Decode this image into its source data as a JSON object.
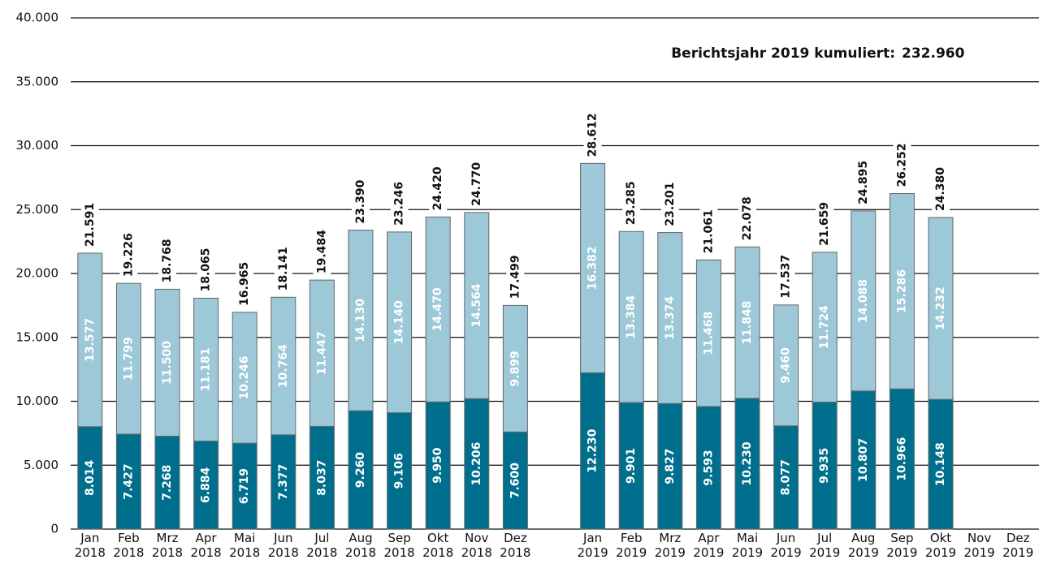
{
  "chart_data": {
    "type": "stacked-bar",
    "annotation": {
      "text": "Berichtsjahr 2019 kumuliert:",
      "value": 232960,
      "value_label": "232.960"
    },
    "categories": [
      "Jan 2018",
      "Feb 2018",
      "Mrz 2018",
      "Apr 2018",
      "Mai 2018",
      "Jun 2018",
      "Jul 2018",
      "Aug 2018",
      "Sep 2018",
      "Okt 2018",
      "Nov 2018",
      "Dez 2018",
      null,
      "Jan 2019",
      "Feb 2019",
      "Mrz 2019",
      "Apr 2019",
      "Mai 2019",
      "Jun 2019",
      "Jul 2019",
      "Aug 2019",
      "Sep 2019",
      "Okt 2019",
      "Nov 2019",
      "Dez 2019"
    ],
    "series": [
      {
        "color": "#006f8e",
        "values": [
          8014,
          7427,
          7268,
          6884,
          6719,
          7377,
          8037,
          9260,
          9106,
          9950,
          10206,
          7600,
          null,
          12230,
          9901,
          9827,
          9593,
          10230,
          8077,
          9935,
          10807,
          10966,
          10148,
          null,
          null
        ],
        "value_labels": [
          "8.014",
          "7.427",
          "7.268",
          "6.884",
          "6.719",
          "7.377",
          "8.037",
          "9.260",
          "9.106",
          "9.950",
          "10.206",
          "7.600",
          null,
          "12.230",
          "9.901",
          "9.827",
          "9.593",
          "10.230",
          "8.077",
          "9.935",
          "10.807",
          "10.966",
          "10.148",
          null,
          null
        ]
      },
      {
        "color": "#9cc8d8",
        "values": [
          13577,
          11799,
          11500,
          11181,
          10246,
          10764,
          11447,
          14130,
          14140,
          14470,
          14564,
          9899,
          null,
          16382,
          13384,
          13374,
          11468,
          11848,
          9460,
          11724,
          14088,
          15286,
          14232,
          null,
          null
        ],
        "value_labels": [
          "13.577",
          "11.799",
          "11.500",
          "11.181",
          "10.246",
          "10.764",
          "11.447",
          "14.130",
          "14.140",
          "14.470",
          "14.564",
          "9.899",
          null,
          "16.382",
          "13.384",
          "13.374",
          "11.468",
          "11.848",
          "9.460",
          "11.724",
          "14.088",
          "15.286",
          "14.232",
          null,
          null
        ]
      }
    ],
    "totals": {
      "values": [
        21591,
        19226,
        18768,
        18065,
        16965,
        18141,
        19484,
        23390,
        23246,
        24420,
        24770,
        17499,
        null,
        28612,
        23285,
        23201,
        21061,
        22078,
        17537,
        21659,
        24895,
        26252,
        24380,
        null,
        null
      ],
      "value_labels": [
        "21.591",
        "19.226",
        "18.768",
        "18.065",
        "16.965",
        "18.141",
        "19.484",
        "23.390",
        "23.246",
        "24.420",
        "24.770",
        "17.499",
        null,
        "28.612",
        "23.285",
        "23.201",
        "21.061",
        "22.078",
        "17.537",
        "21.659",
        "24.895",
        "26.252",
        "24.380",
        null,
        null
      ]
    },
    "ylim": [
      0,
      40000
    ],
    "yticks": [
      0,
      {
        "value": 5000,
        "label": "5.000"
      },
      {
        "value": 10000,
        "label": "10.000"
      },
      {
        "value": 15000,
        "label": "15.000"
      },
      {
        "value": 20000,
        "label": "20.000"
      },
      {
        "value": 25000,
        "label": "25.000"
      },
      {
        "value": 30000,
        "label": "30.000"
      },
      {
        "value": 35000,
        "label": "35.000"
      },
      {
        "value": 40000,
        "label": "40.000"
      }
    ],
    "grid": true
  }
}
